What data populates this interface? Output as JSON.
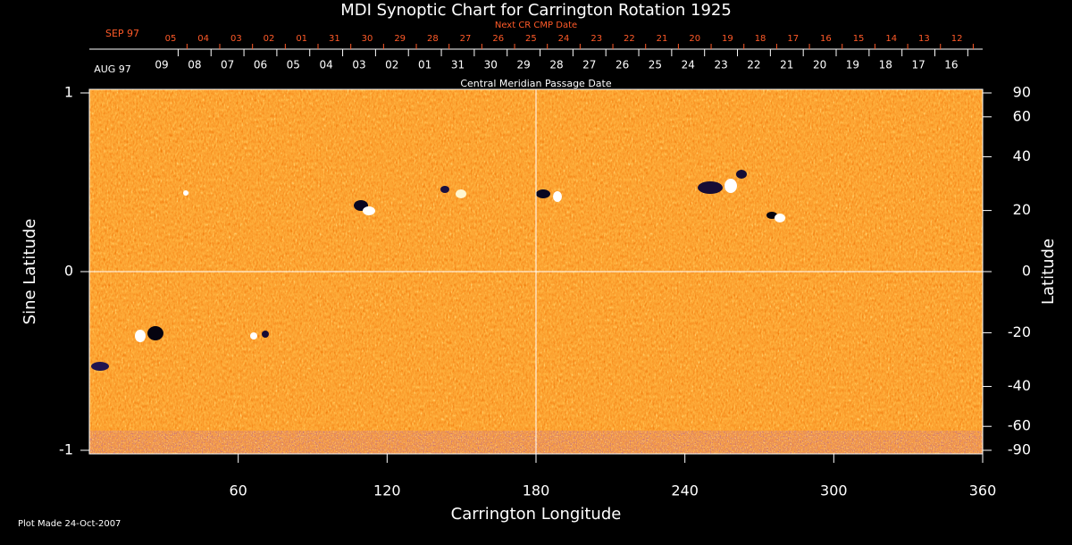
{
  "chart_data": {
    "type": "synoptic-map",
    "title": "MDI Synoptic Chart for Carrington Rotation 1925",
    "xlabel": "Carrington Longitude",
    "ylabel": "Sine Latitude",
    "y2label": "Latitude",
    "xlim": [
      0,
      360
    ],
    "xticks": [
      60,
      120,
      180,
      240,
      300,
      360
    ],
    "ylim": [
      -1,
      1
    ],
    "yticks": [
      -1,
      0,
      1
    ],
    "y2ticks": [
      90,
      60,
      40,
      20,
      0,
      -20,
      -40,
      -60,
      -90
    ],
    "next_cr_axis": {
      "title": "Next CR CMP Date",
      "month_label": "SEP 97",
      "color": "#ff5a28",
      "categories": [
        "05",
        "04",
        "03",
        "02",
        "01",
        "31",
        "30",
        "29",
        "28",
        "27",
        "26",
        "25",
        "24",
        "23",
        "22",
        "21",
        "20",
        "19",
        "18",
        "17",
        "16",
        "15",
        "14",
        "13",
        "12"
      ]
    },
    "cmp_axis": {
      "title": "Central Meridian Passage Date",
      "month_label": "AUG 97",
      "color": "#ffffff",
      "categories": [
        "09",
        "08",
        "07",
        "06",
        "05",
        "04",
        "03",
        "02",
        "01",
        "31",
        "30",
        "29",
        "28",
        "27",
        "26",
        "25",
        "24",
        "23",
        "22",
        "21",
        "20",
        "19",
        "18",
        "17",
        "16"
      ]
    },
    "footnote": "Plot Made 24-Oct-2007"
  }
}
